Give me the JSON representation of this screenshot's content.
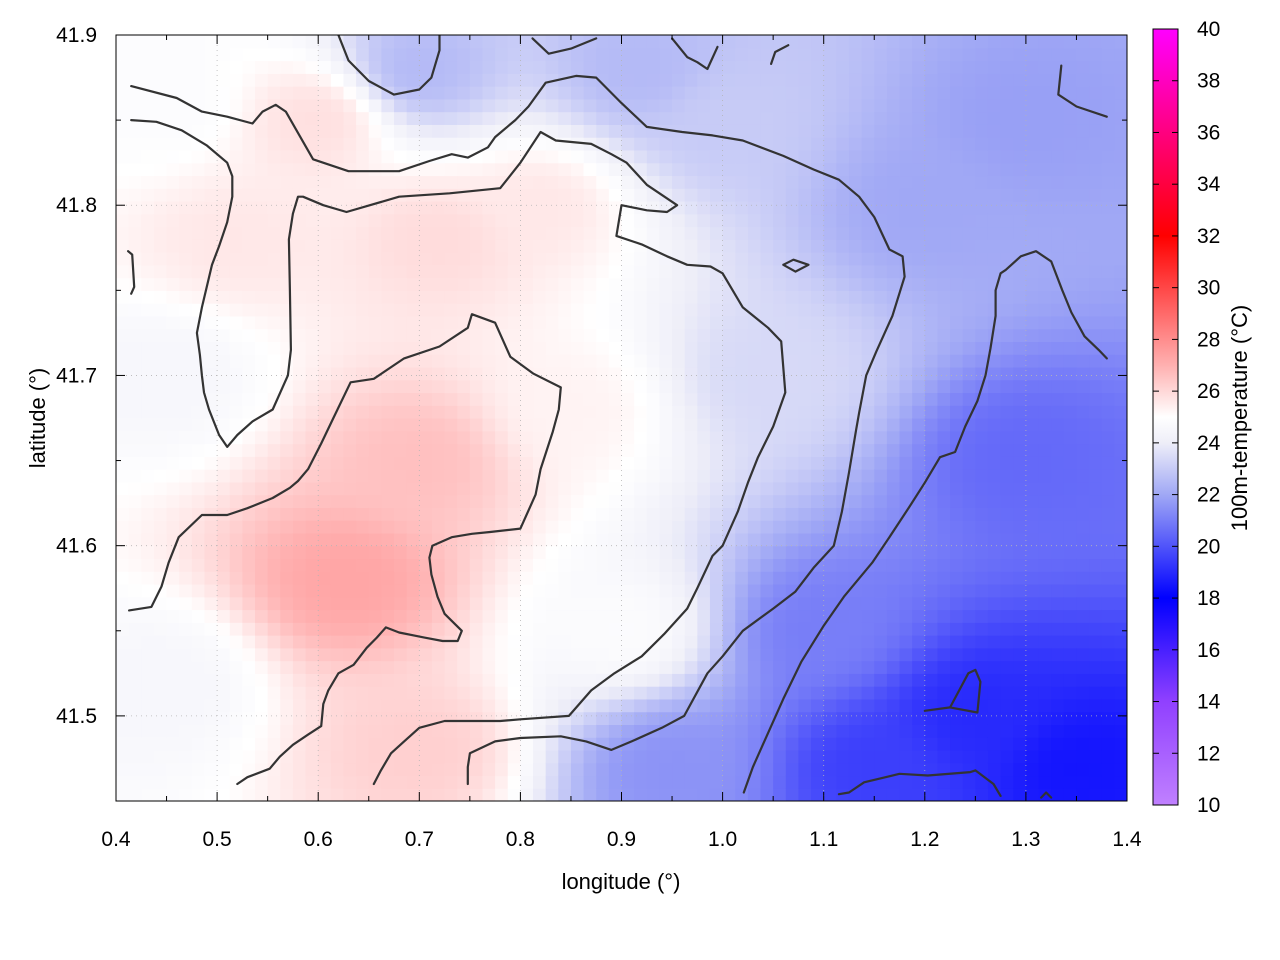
{
  "chart_data": {
    "type": "heatmap",
    "title": "",
    "xlabel": "longitude (°)",
    "ylabel": "latitude (°)",
    "colorbar_label": "100m-temperature (°C)",
    "xlim": [
      0.4,
      1.4
    ],
    "ylim": [
      41.45,
      41.9
    ],
    "x_ticks": [
      "0.4",
      "0.5",
      "0.6",
      "0.7",
      "0.8",
      "0.9",
      "1.0",
      "1.1",
      "1.2",
      "1.3",
      "1.4"
    ],
    "x_tick_values": [
      0.4,
      0.5,
      0.6,
      0.7,
      0.8,
      0.9,
      1.0,
      1.1,
      1.2,
      1.3,
      1.4
    ],
    "y_ticks": [
      "41.5",
      "41.6",
      "41.7",
      "41.8",
      "41.9"
    ],
    "y_tick_values": [
      41.5,
      41.6,
      41.7,
      41.8,
      41.9
    ],
    "colorbar_ticks": [
      "10",
      "12",
      "14",
      "16",
      "18",
      "20",
      "22",
      "24",
      "26",
      "28",
      "30",
      "32",
      "34",
      "36",
      "38",
      "40"
    ],
    "colorbar_tick_values": [
      10,
      12,
      14,
      16,
      18,
      20,
      22,
      24,
      26,
      28,
      30,
      32,
      34,
      36,
      38,
      40
    ],
    "colorbar_range": [
      10,
      40
    ],
    "colormap": [
      {
        "value": 10,
        "color": "#c080ff"
      },
      {
        "value": 14,
        "color": "#9040ff"
      },
      {
        "value": 18,
        "color": "#0000ff"
      },
      {
        "value": 22,
        "color": "#a0a8f5"
      },
      {
        "value": 24,
        "color": "#eeeef8"
      },
      {
        "value": 25,
        "color": "#ffffff"
      },
      {
        "value": 27,
        "color": "#ffb0b0"
      },
      {
        "value": 32,
        "color": "#ff0000"
      },
      {
        "value": 40,
        "color": "#ff00ff"
      }
    ],
    "grid": true,
    "field_anchors": [
      {
        "x": 0.45,
        "y": 41.86,
        "temp": 24.8
      },
      {
        "x": 0.45,
        "y": 41.7,
        "temp": 24.5
      },
      {
        "x": 0.45,
        "y": 41.52,
        "temp": 24.5
      },
      {
        "x": 0.52,
        "y": 41.78,
        "temp": 25.6
      },
      {
        "x": 0.6,
        "y": 41.85,
        "temp": 25.8
      },
      {
        "x": 0.63,
        "y": 41.58,
        "temp": 27.3
      },
      {
        "x": 0.7,
        "y": 41.65,
        "temp": 26.6
      },
      {
        "x": 0.72,
        "y": 41.78,
        "temp": 25.9
      },
      {
        "x": 0.82,
        "y": 41.8,
        "temp": 25.6
      },
      {
        "x": 0.7,
        "y": 41.48,
        "temp": 26.2
      },
      {
        "x": 0.85,
        "y": 41.68,
        "temp": 25.3
      },
      {
        "x": 0.9,
        "y": 41.55,
        "temp": 24.8
      },
      {
        "x": 0.95,
        "y": 41.47,
        "temp": 21.5
      },
      {
        "x": 1.0,
        "y": 41.85,
        "temp": 23.0
      },
      {
        "x": 1.05,
        "y": 41.7,
        "temp": 23.4
      },
      {
        "x": 0.92,
        "y": 41.88,
        "temp": 22.5
      },
      {
        "x": 0.7,
        "y": 41.88,
        "temp": 22.5
      },
      {
        "x": 1.1,
        "y": 41.55,
        "temp": 21.0
      },
      {
        "x": 1.2,
        "y": 41.8,
        "temp": 22.0
      },
      {
        "x": 1.3,
        "y": 41.85,
        "temp": 21.8
      },
      {
        "x": 1.3,
        "y": 41.65,
        "temp": 20.5
      },
      {
        "x": 1.25,
        "y": 41.5,
        "temp": 19.0
      },
      {
        "x": 1.35,
        "y": 41.47,
        "temp": 18.5
      },
      {
        "x": 1.15,
        "y": 41.47,
        "temp": 19.5
      }
    ],
    "contours": [
      [
        [
          0.415,
          41.87
        ],
        [
          0.46,
          41.863
        ],
        [
          0.485,
          41.855
        ],
        [
          0.51,
          41.852
        ],
        [
          0.535,
          41.848
        ],
        [
          0.545,
          41.855
        ],
        [
          0.558,
          41.859
        ],
        [
          0.568,
          41.855
        ],
        [
          0.595,
          41.827
        ],
        [
          0.63,
          41.82
        ],
        [
          0.68,
          41.82
        ],
        [
          0.71,
          41.826
        ],
        [
          0.732,
          41.83
        ],
        [
          0.748,
          41.828
        ],
        [
          0.768,
          41.834
        ],
        [
          0.775,
          41.84
        ],
        [
          0.795,
          41.85
        ],
        [
          0.808,
          41.858
        ],
        [
          0.825,
          41.872
        ],
        [
          0.855,
          41.876
        ],
        [
          0.875,
          41.875
        ],
        [
          0.9,
          41.86
        ],
        [
          0.925,
          41.846
        ],
        [
          0.96,
          41.843
        ],
        [
          0.99,
          41.841
        ],
        [
          1.02,
          41.838
        ],
        [
          1.06,
          41.829
        ],
        [
          1.09,
          41.821
        ],
        [
          1.115,
          41.815
        ],
        [
          1.135,
          41.805
        ],
        [
          1.15,
          41.793
        ],
        [
          1.165,
          41.774
        ],
        [
          1.178,
          41.77
        ],
        [
          1.18,
          41.758
        ],
        [
          1.168,
          41.735
        ],
        [
          1.152,
          41.714
        ],
        [
          1.142,
          41.7
        ],
        [
          1.135,
          41.678
        ],
        [
          1.132,
          41.668
        ],
        [
          1.125,
          41.643
        ],
        [
          1.118,
          41.62
        ],
        [
          1.11,
          41.6
        ],
        [
          1.09,
          41.587
        ],
        [
          1.072,
          41.573
        ],
        [
          1.05,
          41.563
        ],
        [
          1.02,
          41.55
        ],
        [
          1.0,
          41.535
        ],
        [
          0.985,
          41.525
        ],
        [
          0.962,
          41.5
        ],
        [
          0.94,
          41.493
        ],
        [
          0.91,
          41.485
        ],
        [
          0.89,
          41.48
        ],
        [
          0.865,
          41.485
        ],
        [
          0.84,
          41.488
        ],
        [
          0.8,
          41.487
        ],
        [
          0.775,
          41.485
        ],
        [
          0.75,
          41.478
        ],
        [
          0.748,
          41.47
        ],
        [
          0.748,
          41.46
        ]
      ],
      [
        [
          0.415,
          41.85
        ],
        [
          0.44,
          41.849
        ],
        [
          0.465,
          41.844
        ],
        [
          0.49,
          41.835
        ],
        [
          0.51,
          41.825
        ],
        [
          0.515,
          41.817
        ],
        [
          0.515,
          41.805
        ],
        [
          0.51,
          41.79
        ],
        [
          0.502,
          41.776
        ],
        [
          0.495,
          41.765
        ],
        [
          0.485,
          41.74
        ],
        [
          0.48,
          41.725
        ],
        [
          0.483,
          41.712
        ],
        [
          0.485,
          41.7
        ],
        [
          0.487,
          41.69
        ],
        [
          0.492,
          41.68
        ],
        [
          0.502,
          41.665
        ],
        [
          0.51,
          41.658
        ],
        [
          0.52,
          41.665
        ],
        [
          0.535,
          41.673
        ],
        [
          0.555,
          41.68
        ],
        [
          0.57,
          41.7
        ],
        [
          0.573,
          41.715
        ],
        [
          0.572,
          41.75
        ],
        [
          0.571,
          41.78
        ],
        [
          0.575,
          41.795
        ],
        [
          0.58,
          41.805
        ],
        [
          0.585,
          41.805
        ],
        [
          0.605,
          41.8
        ],
        [
          0.628,
          41.796
        ],
        [
          0.68,
          41.805
        ],
        [
          0.73,
          41.807
        ],
        [
          0.78,
          41.81
        ],
        [
          0.8,
          41.825
        ],
        [
          0.82,
          41.843
        ],
        [
          0.835,
          41.838
        ],
        [
          0.87,
          41.836
        ],
        [
          0.89,
          41.83
        ],
        [
          0.905,
          41.825
        ],
        [
          0.925,
          41.812
        ],
        [
          0.955,
          41.8
        ],
        [
          0.945,
          41.796
        ],
        [
          0.925,
          41.797
        ],
        [
          0.9,
          41.8
        ],
        [
          0.895,
          41.782
        ],
        [
          0.92,
          41.777
        ],
        [
          0.945,
          41.77
        ],
        [
          0.965,
          41.765
        ],
        [
          0.988,
          41.764
        ],
        [
          1.0,
          41.76
        ],
        [
          1.02,
          41.74
        ],
        [
          1.045,
          41.728
        ],
        [
          1.058,
          41.72
        ],
        [
          1.062,
          41.69
        ],
        [
          1.05,
          41.67
        ],
        [
          1.035,
          41.652
        ],
        [
          1.025,
          41.637
        ],
        [
          1.015,
          41.62
        ],
        [
          1.0,
          41.6
        ],
        [
          0.99,
          41.594
        ],
        [
          0.975,
          41.575
        ],
        [
          0.965,
          41.563
        ],
        [
          0.942,
          41.548
        ],
        [
          0.92,
          41.535
        ],
        [
          0.893,
          41.525
        ],
        [
          0.87,
          41.515
        ],
        [
          0.848,
          41.5
        ],
        [
          0.8,
          41.498
        ],
        [
          0.78,
          41.497
        ],
        [
          0.725,
          41.497
        ],
        [
          0.7,
          41.493
        ],
        [
          0.685,
          41.485
        ],
        [
          0.672,
          41.478
        ],
        [
          0.662,
          41.468
        ],
        [
          0.655,
          41.46
        ]
      ],
      [
        [
          0.413,
          41.562
        ],
        [
          0.435,
          41.564
        ],
        [
          0.445,
          41.576
        ],
        [
          0.452,
          41.59
        ],
        [
          0.462,
          41.605
        ],
        [
          0.485,
          41.618
        ],
        [
          0.51,
          41.618
        ],
        [
          0.53,
          41.622
        ],
        [
          0.555,
          41.628
        ],
        [
          0.572,
          41.634
        ],
        [
          0.58,
          41.638
        ],
        [
          0.59,
          41.645
        ],
        [
          0.603,
          41.66
        ],
        [
          0.615,
          41.675
        ],
        [
          0.632,
          41.696
        ],
        [
          0.655,
          41.698
        ],
        [
          0.685,
          41.71
        ],
        [
          0.72,
          41.717
        ],
        [
          0.748,
          41.728
        ],
        [
          0.752,
          41.736
        ],
        [
          0.775,
          41.731
        ],
        [
          0.79,
          41.711
        ],
        [
          0.813,
          41.701
        ],
        [
          0.84,
          41.693
        ],
        [
          0.838,
          41.68
        ],
        [
          0.832,
          41.667
        ],
        [
          0.82,
          41.645
        ],
        [
          0.815,
          41.63
        ],
        [
          0.8,
          41.61
        ],
        [
          0.77,
          41.608
        ],
        [
          0.752,
          41.607
        ],
        [
          0.732,
          41.605
        ],
        [
          0.713,
          41.6
        ],
        [
          0.71,
          41.593
        ],
        [
          0.712,
          41.583
        ],
        [
          0.718,
          41.57
        ],
        [
          0.725,
          41.56
        ],
        [
          0.742,
          41.55
        ],
        [
          0.738,
          41.544
        ],
        [
          0.723,
          41.544
        ],
        [
          0.705,
          41.546
        ],
        [
          0.68,
          41.549
        ],
        [
          0.667,
          41.552
        ],
        [
          0.658,
          41.546
        ],
        [
          0.648,
          41.54
        ],
        [
          0.635,
          41.53
        ],
        [
          0.62,
          41.525
        ],
        [
          0.61,
          41.515
        ],
        [
          0.605,
          41.507
        ],
        [
          0.603,
          41.494
        ],
        [
          0.59,
          41.489
        ],
        [
          0.575,
          41.483
        ],
        [
          0.562,
          41.476
        ],
        [
          0.552,
          41.469
        ],
        [
          0.53,
          41.464
        ],
        [
          0.52,
          41.46
        ]
      ],
      [
        [
          1.021,
          41.455
        ],
        [
          1.03,
          41.47
        ],
        [
          1.045,
          41.49
        ],
        [
          1.06,
          41.51
        ],
        [
          1.078,
          41.532
        ],
        [
          1.1,
          41.553
        ],
        [
          1.12,
          41.57
        ],
        [
          1.148,
          41.59
        ],
        [
          1.165,
          41.605
        ],
        [
          1.185,
          41.623
        ],
        [
          1.2,
          41.637
        ],
        [
          1.215,
          41.652
        ],
        [
          1.23,
          41.655
        ],
        [
          1.24,
          41.67
        ],
        [
          1.252,
          41.685
        ],
        [
          1.26,
          41.7
        ],
        [
          1.265,
          41.716
        ],
        [
          1.27,
          41.735
        ],
        [
          1.27,
          41.75
        ],
        [
          1.275,
          41.76
        ],
        [
          1.28,
          41.762
        ],
        [
          1.295,
          41.77
        ],
        [
          1.31,
          41.773
        ],
        [
          1.325,
          41.767
        ],
        [
          1.336,
          41.75
        ],
        [
          1.345,
          41.737
        ],
        [
          1.358,
          41.723
        ],
        [
          1.372,
          41.715
        ],
        [
          1.38,
          41.71
        ]
      ],
      [
        [
          1.335,
          41.882
        ],
        [
          1.332,
          41.865
        ],
        [
          1.35,
          41.858
        ],
        [
          1.38,
          41.852
        ]
      ],
      [
        [
          1.2,
          41.503
        ],
        [
          1.225,
          41.505
        ],
        [
          1.252,
          41.502
        ],
        [
          1.255,
          41.52
        ],
        [
          1.25,
          41.527
        ],
        [
          1.243,
          41.525
        ],
        [
          1.225,
          41.505
        ]
      ],
      [
        [
          1.115,
          41.454
        ],
        [
          1.125,
          41.455
        ],
        [
          1.14,
          41.461
        ],
        [
          1.175,
          41.466
        ],
        [
          1.203,
          41.465
        ],
        [
          1.245,
          41.467
        ],
        [
          1.25,
          41.468
        ],
        [
          1.268,
          41.46
        ],
        [
          1.275,
          41.453
        ]
      ],
      [
        [
          1.315,
          41.452
        ],
        [
          1.32,
          41.455
        ],
        [
          1.325,
          41.452
        ]
      ],
      [
        [
          0.62,
          41.9
        ],
        [
          0.63,
          41.885
        ],
        [
          0.65,
          41.873
        ],
        [
          0.675,
          41.865
        ],
        [
          0.7,
          41.868
        ],
        [
          0.712,
          41.875
        ],
        [
          0.72,
          41.891
        ],
        [
          0.72,
          41.9
        ]
      ],
      [
        [
          0.812,
          41.898
        ],
        [
          0.828,
          41.889
        ],
        [
          0.85,
          41.892
        ],
        [
          0.875,
          41.898
        ]
      ],
      [
        [
          0.95,
          41.898
        ],
        [
          0.965,
          41.887
        ],
        [
          0.975,
          41.884
        ],
        [
          0.985,
          41.88
        ],
        [
          0.995,
          41.893
        ]
      ],
      [
        [
          1.048,
          41.883
        ],
        [
          1.052,
          41.89
        ],
        [
          1.065,
          41.894
        ]
      ],
      [
        [
          1.06,
          41.765
        ],
        [
          1.07,
          41.768
        ],
        [
          1.085,
          41.765
        ],
        [
          1.072,
          41.761
        ],
        [
          1.06,
          41.765
        ]
      ],
      [
        [
          0.412,
          41.773
        ],
        [
          0.416,
          41.771
        ],
        [
          0.418,
          41.752
        ],
        [
          0.415,
          41.748
        ]
      ]
    ]
  }
}
